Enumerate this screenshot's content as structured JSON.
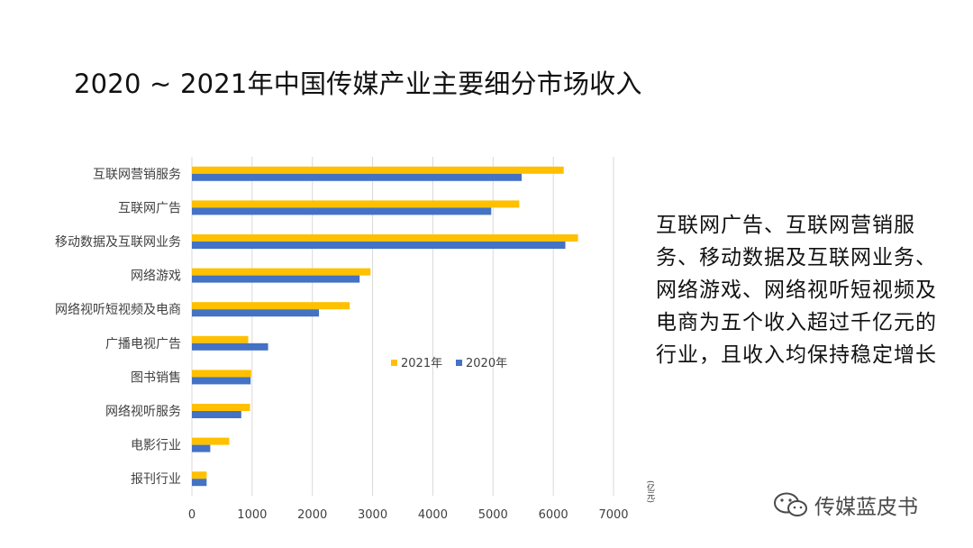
{
  "title": "2020 ~ 2021年中国传媒产业主要细分市场收入",
  "annotation": "互联网广告、互联网营销服务、移动数据及互联网业务、网络游戏、网络视听短视频及电商为五个收入超过千亿元的行业，且收入均保持稳定增长",
  "unit_label": "(亿元)",
  "watermark": "传媒蓝皮书",
  "colors": {
    "s2021": "#FFC000",
    "s2020": "#4472C4",
    "grid": "#D9D9D9",
    "text": "#404040"
  },
  "chart_data": {
    "type": "bar",
    "orientation": "horizontal",
    "categories": [
      "互联网营销服务",
      "互联网广告",
      "移动数据及互联网业务",
      "网络游戏",
      "网络视听短视频及电商",
      "广播电视广告",
      "图书销售",
      "网络视听服务",
      "电影行业",
      "报刊行业"
    ],
    "series": [
      {
        "name": "2021年",
        "values": [
          6173,
          5435,
          6410,
          2965,
          2620,
          935,
          985,
          965,
          620,
          245
        ]
      },
      {
        "name": "2020年",
        "values": [
          5475,
          4970,
          6200,
          2785,
          2110,
          1265,
          975,
          820,
          305,
          245
        ]
      }
    ],
    "xlim": [
      0,
      7000
    ],
    "xticks": [
      0,
      1000,
      2000,
      3000,
      4000,
      5000,
      6000,
      7000
    ],
    "grid": true,
    "legend": "center-right"
  }
}
